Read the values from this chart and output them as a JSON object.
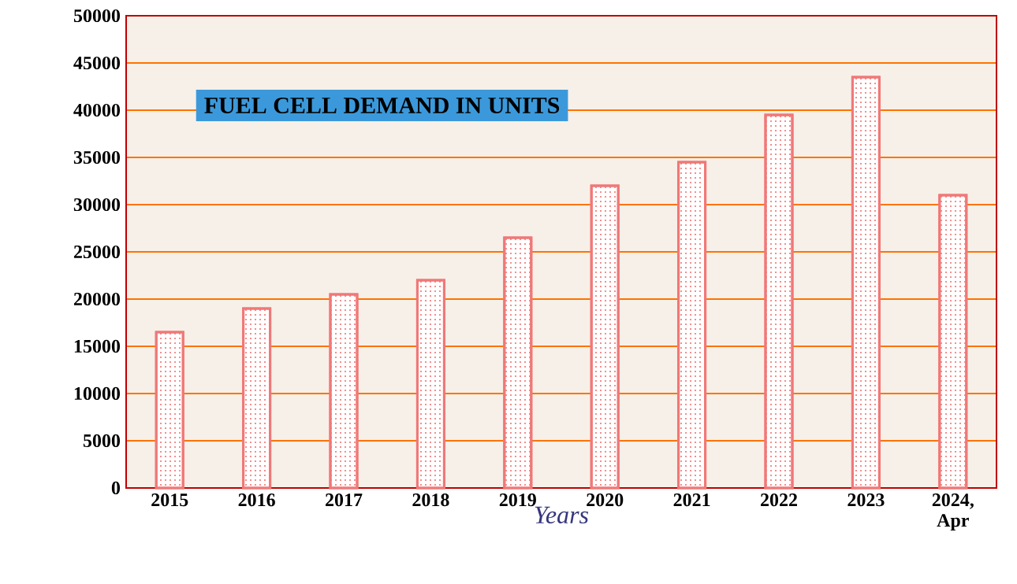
{
  "chart_data": {
    "type": "bar",
    "title": "FUEL CELL DEMAND IN UNITS",
    "xlabel": "Years",
    "categories": [
      "2015",
      "2016",
      "2017",
      "2018",
      "2019",
      "2020",
      "2021",
      "2022",
      "2023",
      "2024, Apr"
    ],
    "values": [
      16500,
      19000,
      20500,
      22000,
      26500,
      32000,
      34500,
      39500,
      43500,
      31000
    ],
    "color": "#ffffff",
    "ylim": [
      0,
      50000
    ],
    "yticks": [
      0,
      5000,
      10000,
      15000,
      20000,
      25000,
      30000,
      35000,
      40000,
      45000,
      50000
    ],
    "grid": "y"
  }
}
